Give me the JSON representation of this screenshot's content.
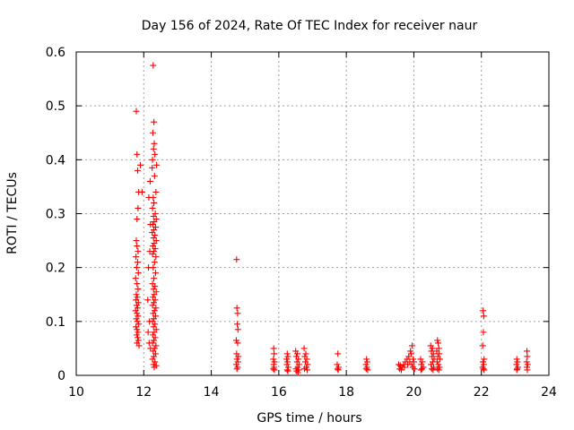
{
  "chart_data": {
    "type": "scatter",
    "title": "Day 156 of 2024, Rate Of TEC Index for receiver naur",
    "xlabel": "GPS time / hours",
    "ylabel": "ROTI / TECUs",
    "xlim": [
      10,
      24
    ],
    "ylim": [
      0,
      0.6
    ],
    "xticks": [
      10,
      12,
      14,
      16,
      18,
      20,
      22,
      24
    ],
    "xtick_labels": [
      "10",
      "12",
      "14",
      "16",
      "18",
      "20",
      "22",
      "24"
    ],
    "yticks": [
      0,
      0.1,
      0.2,
      0.3,
      0.4,
      0.5,
      0.6
    ],
    "ytick_labels": [
      "0",
      "0.1",
      "0.2",
      "0.3",
      "0.4",
      "0.5",
      "0.6"
    ],
    "grid": true,
    "marker": "+",
    "color": "#ff0000",
    "series": [
      {
        "name": "ROTI",
        "points": [
          [
            11.78,
            0.49
          ],
          [
            11.8,
            0.41
          ],
          [
            11.82,
            0.38
          ],
          [
            11.85,
            0.34
          ],
          [
            11.83,
            0.31
          ],
          [
            11.8,
            0.29
          ],
          [
            11.78,
            0.25
          ],
          [
            11.8,
            0.24
          ],
          [
            11.83,
            0.23
          ],
          [
            11.77,
            0.22
          ],
          [
            11.82,
            0.21
          ],
          [
            11.79,
            0.2
          ],
          [
            11.84,
            0.19
          ],
          [
            11.76,
            0.18
          ],
          [
            11.8,
            0.17
          ],
          [
            11.83,
            0.16
          ],
          [
            11.78,
            0.15
          ],
          [
            11.81,
            0.145
          ],
          [
            11.77,
            0.14
          ],
          [
            11.84,
            0.135
          ],
          [
            11.79,
            0.13
          ],
          [
            11.82,
            0.125
          ],
          [
            11.76,
            0.12
          ],
          [
            11.8,
            0.115
          ],
          [
            11.83,
            0.11
          ],
          [
            11.78,
            0.105
          ],
          [
            11.81,
            0.1
          ],
          [
            11.85,
            0.095
          ],
          [
            11.77,
            0.09
          ],
          [
            11.8,
            0.085
          ],
          [
            11.83,
            0.08
          ],
          [
            11.79,
            0.075
          ],
          [
            11.82,
            0.07
          ],
          [
            11.84,
            0.065
          ],
          [
            11.8,
            0.06
          ],
          [
            11.86,
            0.055
          ],
          [
            11.9,
            0.39
          ],
          [
            11.95,
            0.34
          ],
          [
            12.28,
            0.575
          ],
          [
            12.3,
            0.47
          ],
          [
            12.27,
            0.45
          ],
          [
            12.31,
            0.43
          ],
          [
            12.29,
            0.42
          ],
          [
            12.33,
            0.41
          ],
          [
            12.26,
            0.4
          ],
          [
            12.38,
            0.39
          ],
          [
            12.25,
            0.385
          ],
          [
            12.32,
            0.37
          ],
          [
            12.36,
            0.34
          ],
          [
            12.28,
            0.33
          ],
          [
            12.3,
            0.32
          ],
          [
            12.26,
            0.31
          ],
          [
            12.34,
            0.3
          ],
          [
            12.29,
            0.295
          ],
          [
            12.37,
            0.29
          ],
          [
            12.31,
            0.285
          ],
          [
            12.27,
            0.28
          ],
          [
            12.35,
            0.275
          ],
          [
            12.3,
            0.27
          ],
          [
            12.25,
            0.265
          ],
          [
            12.33,
            0.26
          ],
          [
            12.29,
            0.255
          ],
          [
            12.37,
            0.25
          ],
          [
            12.31,
            0.245
          ],
          [
            12.27,
            0.24
          ],
          [
            12.34,
            0.235
          ],
          [
            12.3,
            0.23
          ],
          [
            12.26,
            0.225
          ],
          [
            12.36,
            0.22
          ],
          [
            12.32,
            0.21
          ],
          [
            12.28,
            0.2
          ],
          [
            12.35,
            0.19
          ],
          [
            12.3,
            0.18
          ],
          [
            12.26,
            0.17
          ],
          [
            12.33,
            0.165
          ],
          [
            12.29,
            0.16
          ],
          [
            12.37,
            0.155
          ],
          [
            12.31,
            0.15
          ],
          [
            12.27,
            0.145
          ],
          [
            12.34,
            0.14
          ],
          [
            12.3,
            0.135
          ],
          [
            12.26,
            0.13
          ],
          [
            12.36,
            0.125
          ],
          [
            12.32,
            0.12
          ],
          [
            12.28,
            0.115
          ],
          [
            12.35,
            0.11
          ],
          [
            12.3,
            0.105
          ],
          [
            12.26,
            0.1
          ],
          [
            12.33,
            0.095
          ],
          [
            12.29,
            0.09
          ],
          [
            12.37,
            0.085
          ],
          [
            12.31,
            0.08
          ],
          [
            12.27,
            0.075
          ],
          [
            12.34,
            0.07
          ],
          [
            12.3,
            0.065
          ],
          [
            12.26,
            0.06
          ],
          [
            12.36,
            0.055
          ],
          [
            12.32,
            0.05
          ],
          [
            12.28,
            0.045
          ],
          [
            12.35,
            0.04
          ],
          [
            12.3,
            0.035
          ],
          [
            12.26,
            0.03
          ],
          [
            12.33,
            0.025
          ],
          [
            12.29,
            0.02
          ],
          [
            12.37,
            0.018
          ],
          [
            12.31,
            0.015
          ],
          [
            12.19,
            0.36
          ],
          [
            12.15,
            0.33
          ],
          [
            12.2,
            0.28
          ],
          [
            12.18,
            0.23
          ],
          [
            12.14,
            0.2
          ],
          [
            12.12,
            0.14
          ],
          [
            12.17,
            0.1
          ],
          [
            12.13,
            0.08
          ],
          [
            12.16,
            0.06
          ],
          [
            12.2,
            0.05
          ],
          [
            14.75,
            0.215
          ],
          [
            14.76,
            0.125
          ],
          [
            14.78,
            0.115
          ],
          [
            14.77,
            0.095
          ],
          [
            14.79,
            0.085
          ],
          [
            14.74,
            0.065
          ],
          [
            14.78,
            0.06
          ],
          [
            14.75,
            0.04
          ],
          [
            14.8,
            0.035
          ],
          [
            14.76,
            0.03
          ],
          [
            14.79,
            0.025
          ],
          [
            14.74,
            0.02
          ],
          [
            14.78,
            0.015
          ],
          [
            14.76,
            0.012
          ],
          [
            15.85,
            0.05
          ],
          [
            15.86,
            0.04
          ],
          [
            15.84,
            0.03
          ],
          [
            15.87,
            0.025
          ],
          [
            15.85,
            0.02
          ],
          [
            15.86,
            0.015
          ],
          [
            15.84,
            0.012
          ],
          [
            15.87,
            0.01
          ],
          [
            16.25,
            0.04
          ],
          [
            16.27,
            0.035
          ],
          [
            16.23,
            0.03
          ],
          [
            16.26,
            0.025
          ],
          [
            16.24,
            0.02
          ],
          [
            16.28,
            0.015
          ],
          [
            16.25,
            0.01
          ],
          [
            16.27,
            0.008
          ],
          [
            16.5,
            0.045
          ],
          [
            16.55,
            0.04
          ],
          [
            16.52,
            0.035
          ],
          [
            16.58,
            0.03
          ],
          [
            16.54,
            0.025
          ],
          [
            16.6,
            0.02
          ],
          [
            16.56,
            0.015
          ],
          [
            16.51,
            0.012
          ],
          [
            16.59,
            0.01
          ],
          [
            16.53,
            0.008
          ],
          [
            16.57,
            0.005
          ],
          [
            16.75,
            0.05
          ],
          [
            16.8,
            0.04
          ],
          [
            16.77,
            0.035
          ],
          [
            16.83,
            0.03
          ],
          [
            16.79,
            0.025
          ],
          [
            16.85,
            0.02
          ],
          [
            16.81,
            0.015
          ],
          [
            16.76,
            0.012
          ],
          [
            16.84,
            0.01
          ],
          [
            17.75,
            0.04
          ],
          [
            17.73,
            0.02
          ],
          [
            17.77,
            0.015
          ],
          [
            17.74,
            0.012
          ],
          [
            17.76,
            0.01
          ],
          [
            18.6,
            0.03
          ],
          [
            18.62,
            0.025
          ],
          [
            18.58,
            0.02
          ],
          [
            18.61,
            0.015
          ],
          [
            18.59,
            0.012
          ],
          [
            18.63,
            0.01
          ],
          [
            19.55,
            0.02
          ],
          [
            19.6,
            0.018
          ],
          [
            19.65,
            0.015
          ],
          [
            19.58,
            0.012
          ],
          [
            19.63,
            0.01
          ],
          [
            19.7,
            0.02
          ],
          [
            19.75,
            0.025
          ],
          [
            19.72,
            0.015
          ],
          [
            19.8,
            0.03
          ],
          [
            19.85,
            0.035
          ],
          [
            19.82,
            0.02
          ],
          [
            19.88,
            0.025
          ],
          [
            19.9,
            0.045
          ],
          [
            19.95,
            0.055
          ],
          [
            19.92,
            0.04
          ],
          [
            19.98,
            0.03
          ],
          [
            20.0,
            0.025
          ],
          [
            19.94,
            0.02
          ],
          [
            19.97,
            0.015
          ],
          [
            20.02,
            0.012
          ],
          [
            20.2,
            0.03
          ],
          [
            20.25,
            0.025
          ],
          [
            20.22,
            0.02
          ],
          [
            20.28,
            0.015
          ],
          [
            20.24,
            0.012
          ],
          [
            20.21,
            0.01
          ],
          [
            20.5,
            0.055
          ],
          [
            20.55,
            0.05
          ],
          [
            20.52,
            0.045
          ],
          [
            20.58,
            0.04
          ],
          [
            20.54,
            0.035
          ],
          [
            20.6,
            0.03
          ],
          [
            20.56,
            0.025
          ],
          [
            20.51,
            0.02
          ],
          [
            20.59,
            0.015
          ],
          [
            20.53,
            0.012
          ],
          [
            20.57,
            0.01
          ],
          [
            20.7,
            0.065
          ],
          [
            20.72,
            0.06
          ],
          [
            20.74,
            0.05
          ],
          [
            20.68,
            0.045
          ],
          [
            20.75,
            0.04
          ],
          [
            20.71,
            0.035
          ],
          [
            20.77,
            0.03
          ],
          [
            20.69,
            0.025
          ],
          [
            20.73,
            0.02
          ],
          [
            20.76,
            0.015
          ],
          [
            20.7,
            0.012
          ],
          [
            20.74,
            0.01
          ],
          [
            22.05,
            0.12
          ],
          [
            22.07,
            0.11
          ],
          [
            22.06,
            0.08
          ],
          [
            22.04,
            0.055
          ],
          [
            22.08,
            0.03
          ],
          [
            22.05,
            0.025
          ],
          [
            22.07,
            0.02
          ],
          [
            22.04,
            0.015
          ],
          [
            22.06,
            0.012
          ],
          [
            22.08,
            0.01
          ],
          [
            23.05,
            0.03
          ],
          [
            23.07,
            0.025
          ],
          [
            23.04,
            0.02
          ],
          [
            23.08,
            0.015
          ],
          [
            23.06,
            0.012
          ],
          [
            23.05,
            0.01
          ],
          [
            23.35,
            0.045
          ],
          [
            23.36,
            0.035
          ],
          [
            23.34,
            0.025
          ],
          [
            23.37,
            0.02
          ],
          [
            23.35,
            0.015
          ],
          [
            23.36,
            0.01
          ]
        ]
      }
    ]
  }
}
